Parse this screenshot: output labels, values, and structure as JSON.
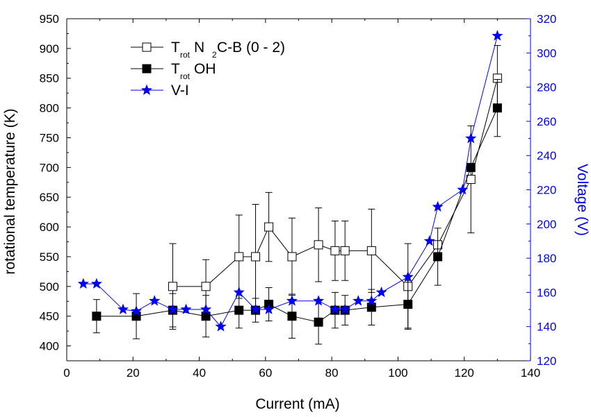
{
  "chart_data": {
    "type": "scatter",
    "xlabel": "Current (mA)",
    "ylabel_left": "rotational temperature (K)",
    "ylabel_right": "Voltage (V)",
    "xlim": [
      0,
      140
    ],
    "ylim_left": [
      375,
      950
    ],
    "ylim_right": [
      120,
      320
    ],
    "x_ticks": [
      "0",
      "20",
      "40",
      "60",
      "80",
      "100",
      "120",
      "140"
    ],
    "y_left_ticks": [
      "400",
      "450",
      "500",
      "550",
      "600",
      "650",
      "700",
      "750",
      "800",
      "850",
      "900",
      "950"
    ],
    "y_right_ticks": [
      "120",
      "140",
      "160",
      "180",
      "200",
      "220",
      "240",
      "260",
      "280",
      "300",
      "320"
    ],
    "colors": {
      "right_axis": "#0000ee",
      "vi": "#0000ee",
      "black": "#000000"
    },
    "legend": [
      {
        "main": "T",
        "sub": "rot",
        "rest_main": " N",
        "rest_sub": "2",
        "tail": " C-B (0 - 2)",
        "marker": "open-square"
      },
      {
        "main": "T",
        "sub": "rot",
        "tail": " OH",
        "marker": "filled-square"
      },
      {
        "main": "V-I",
        "marker": "star"
      }
    ],
    "series": [
      {
        "name": "Trot N2 C-B (0 - 2)",
        "axis": "left",
        "marker": "open-square",
        "x": [
          32,
          42,
          52,
          57,
          61,
          68,
          76,
          81,
          84,
          92,
          103,
          112,
          122,
          130
        ],
        "y": [
          500,
          500,
          550,
          550,
          600,
          550,
          570,
          560,
          560,
          560,
          500,
          570,
          680,
          850
        ],
        "err": [
          72,
          45,
          70,
          88,
          58,
          65,
          62,
          50,
          50,
          70,
          72,
          0,
          90,
          55
        ]
      },
      {
        "name": "Trot OH",
        "axis": "left",
        "marker": "filled-square",
        "x": [
          9,
          21,
          32,
          42,
          52,
          57,
          61,
          68,
          76,
          81,
          84,
          92,
          103,
          112,
          122,
          130
        ],
        "y": [
          450,
          450,
          460,
          450,
          460,
          460,
          470,
          450,
          440,
          460,
          460,
          465,
          470,
          550,
          700,
          800
        ],
        "err": [
          28,
          38,
          28,
          35,
          30,
          20,
          28,
          37,
          37,
          30,
          25,
          30,
          40,
          48,
          0,
          48
        ]
      },
      {
        "name": "V-I",
        "axis": "right",
        "marker": "star",
        "x": [
          5,
          9,
          17,
          21,
          26.5,
          32,
          36,
          42,
          46.5,
          52,
          57,
          61,
          68,
          76,
          81,
          84,
          88,
          92,
          95,
          103,
          109.5,
          112,
          119.5,
          122,
          130
        ],
        "y": [
          165,
          165,
          150,
          149,
          155,
          150,
          150,
          150,
          140,
          160,
          150,
          150,
          155,
          155,
          150,
          150,
          155,
          155,
          160,
          169,
          190,
          210,
          220,
          250,
          310
        ]
      }
    ]
  }
}
